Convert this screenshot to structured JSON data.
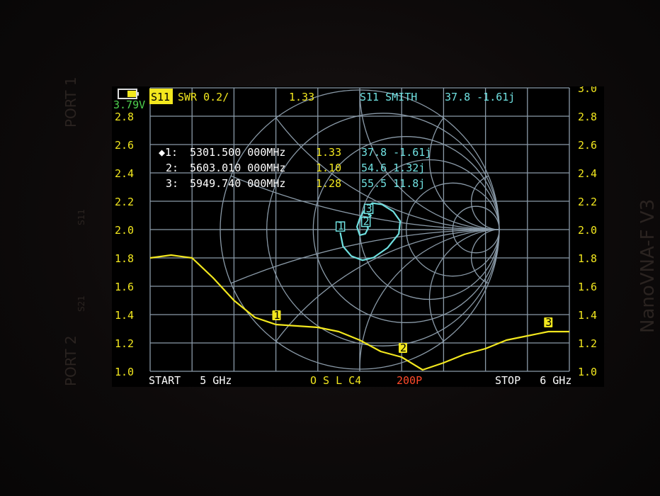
{
  "device": {
    "model_label": "NanoVNA-F V3",
    "port1_label": "PORT 1",
    "port2_label": "PORT 2",
    "s11_label": "S11",
    "s21_label": "S21"
  },
  "status": {
    "battery_voltage": "3.79V",
    "battery_level": 0.5
  },
  "header": {
    "trace1_channel": "S11",
    "trace1_format": "SWR 0.2/",
    "trace1_value": "1.33",
    "trace2_label": "S11 SMITH",
    "trace2_value": "37.8 -1.61j"
  },
  "markers": [
    {
      "label": "◆1:",
      "freq": "5301.500 000MHz",
      "swr": "1.33",
      "impedance": "37.8 -1.61j"
    },
    {
      "label": "2:",
      "freq": "5603.010 000MHz",
      "swr": "1.10",
      "impedance": "54.6 1.32j"
    },
    {
      "label": "3:",
      "freq": "5949.740 000MHz",
      "swr": "1.28",
      "impedance": "55.5 11.8j"
    }
  ],
  "footer": {
    "start": "START   5 GHz",
    "cal": "O S L C4",
    "points": "200P",
    "stop": "STOP   6 GHz"
  },
  "colors": {
    "swr_trace": "#f2e71e",
    "smith_trace": "#6fe0e0",
    "grid": "#8a9aa8",
    "axis_labels": "#f2e71e",
    "battery_voltage": "#4fd24f",
    "points": "#ff4a2a"
  },
  "chart_data": [
    {
      "type": "line",
      "title": "S11 SWR 0.2/",
      "xlabel": "",
      "ylabel": "",
      "xlim": [
        5.0,
        6.0
      ],
      "x_unit": "GHz",
      "ylim": [
        1.0,
        3.0
      ],
      "yticks_left": [
        "2.8",
        "2.6",
        "2.4",
        "2.2",
        "2.0",
        "1.8",
        "1.6",
        "1.4",
        "1.2",
        "1.0"
      ],
      "yticks_right": [
        "3.0",
        "2.8",
        "2.6",
        "2.4",
        "2.2",
        "2.0",
        "1.8",
        "1.6",
        "1.4",
        "1.2",
        "1.0"
      ],
      "grid": true,
      "x": [
        5.0,
        5.05,
        5.1,
        5.15,
        5.2,
        5.25,
        5.3,
        5.35,
        5.4,
        5.45,
        5.5,
        5.55,
        5.6,
        5.65,
        5.7,
        5.75,
        5.8,
        5.85,
        5.9,
        5.95,
        6.0
      ],
      "y": [
        1.8,
        1.82,
        1.8,
        1.66,
        1.5,
        1.38,
        1.33,
        1.32,
        1.31,
        1.28,
        1.22,
        1.14,
        1.1,
        1.01,
        1.06,
        1.12,
        1.16,
        1.22,
        1.25,
        1.28,
        1.28
      ],
      "marker_points": [
        {
          "id": "1",
          "x": 5.3015,
          "y": 1.33
        },
        {
          "id": "2",
          "x": 5.60301,
          "y": 1.1
        },
        {
          "id": "3",
          "x": 5.94974,
          "y": 1.28
        }
      ]
    },
    {
      "type": "scatter",
      "title": "S11 SMITH",
      "gamma_real": [
        -0.14,
        -0.12,
        -0.06,
        0.02,
        0.1,
        0.2,
        0.28,
        0.29,
        0.24,
        0.16,
        0.09,
        0.04,
        0.0,
        -0.02,
        0.0,
        0.04,
        0.06,
        0.05,
        0.04,
        0.06,
        0.08,
        0.07,
        0.06
      ],
      "gamma_imag": [
        -0.02,
        -0.12,
        -0.19,
        -0.22,
        -0.2,
        -0.13,
        -0.03,
        0.06,
        0.13,
        0.18,
        0.19,
        0.15,
        0.08,
        0.02,
        -0.04,
        -0.03,
        0.01,
        0.03,
        0.05,
        0.08,
        0.1,
        0.11,
        0.105
      ],
      "marker_points": [
        {
          "id": "1",
          "re": -0.139,
          "im": -0.021
        },
        {
          "id": "2",
          "re": 0.044,
          "im": 0.012
        },
        {
          "id": "3",
          "re": 0.064,
          "im": 0.105
        }
      ]
    }
  ]
}
